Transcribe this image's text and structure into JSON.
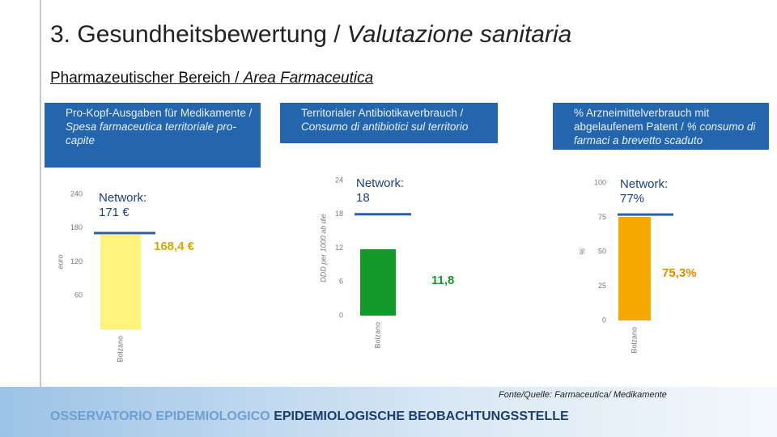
{
  "title": [
    "3. Gesundheitsbewertung /",
    "Valutazione sanitaria"
  ],
  "subtitle": [
    "Pharmazeutischer Bereich /",
    "Area Farmaceutica"
  ],
  "source": "Fonte/Quelle: Farmaceutica/ Medikamente",
  "footer": [
    "OSSERVATORIO EPIDEMIOLOGICO",
    "EPIDEMIOLOGISCHE BEOBACHTUNGSSTELLE"
  ],
  "chart_data": [
    {
      "type": "bar",
      "title": [
        "Pro-Kopf-Ausgaben für Medikamente /",
        "Spesa farmaceutica territoriale pro-capite"
      ],
      "ylabel": "euro",
      "categories": [
        "Bolzano"
      ],
      "values": [
        168.4
      ],
      "value_labels": [
        "168,4 €"
      ],
      "color": "#fff37e",
      "label_color": "#d4a800",
      "ylim": [
        0,
        240
      ],
      "yticks": [
        60,
        120,
        180,
        240
      ],
      "reference": {
        "label": "Network: 171 €",
        "value": 171,
        "color": "#2e5fa8"
      }
    },
    {
      "type": "bar",
      "title": [
        "Territorialer Antibiotikaverbrauch /",
        "Consumo di antibiotici sul territorio"
      ],
      "ylabel": "DDD per 1000 ab die",
      "categories": [
        "Bolzano"
      ],
      "values": [
        11.8
      ],
      "value_labels": [
        "11,8"
      ],
      "color": "#14992b",
      "label_color": "#14992b",
      "ylim": [
        0,
        24
      ],
      "yticks": [
        0,
        6,
        12,
        18,
        24
      ],
      "reference": {
        "label": "Network: 18",
        "value": 18,
        "color": "#2e5fa8"
      }
    },
    {
      "type": "bar",
      "title": [
        "% Arzneimittelverbrauch mit abgelaufenem Patent /",
        "% consumo di farmaci a brevetto scaduto"
      ],
      "ylabel": "%",
      "categories": [
        "Bolzano"
      ],
      "values": [
        75.3
      ],
      "value_labels": [
        "75,3%"
      ],
      "color": "#f5a800",
      "label_color": "#e08a00",
      "ylim": [
        0,
        100
      ],
      "yticks": [
        0,
        25,
        50,
        75,
        100
      ],
      "reference": {
        "label": "Network: 77%",
        "value": 77,
        "color": "#2e5fa8"
      }
    }
  ]
}
